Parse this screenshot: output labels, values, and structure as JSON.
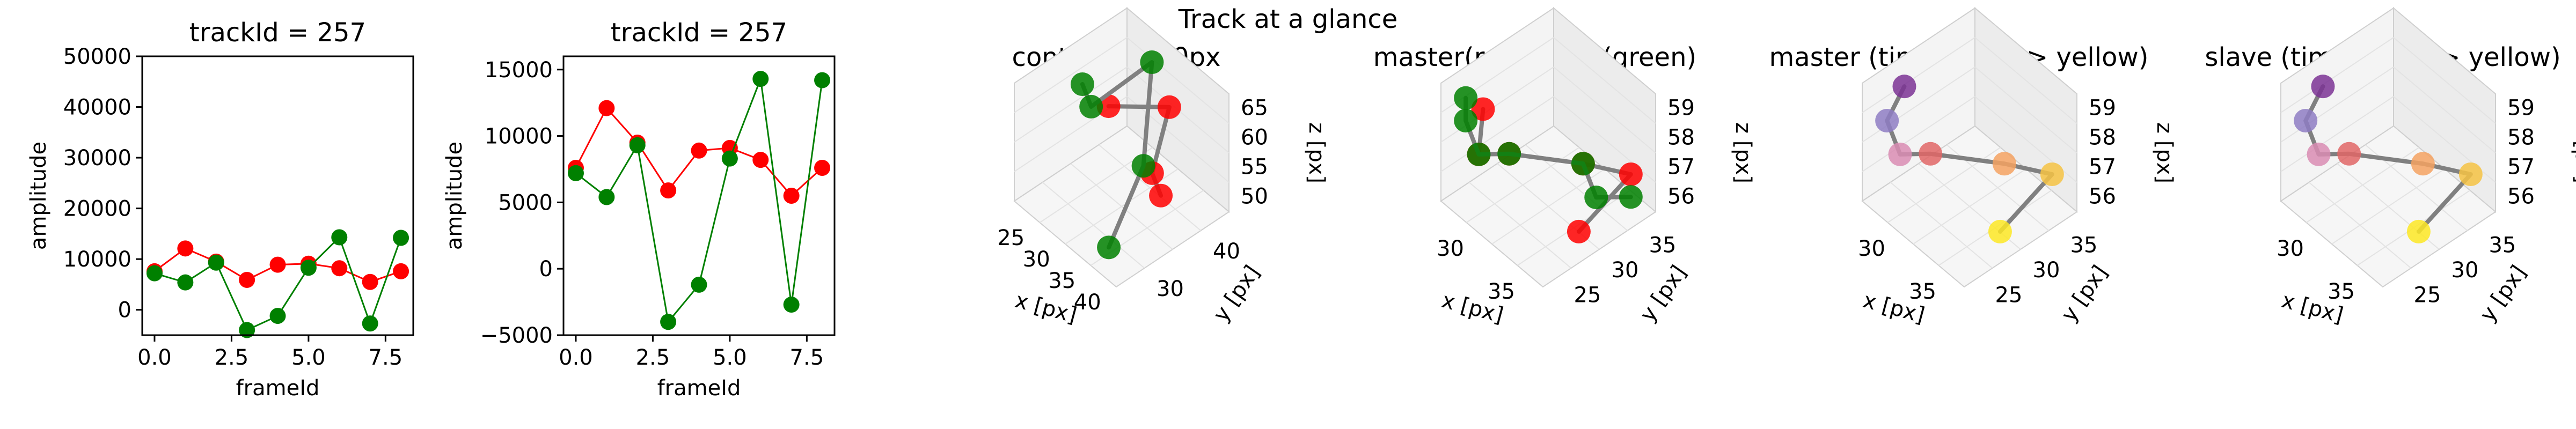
{
  "figure": {
    "suptitle": "Track at a glance"
  },
  "colors": {
    "master": "#ff0000",
    "slave": "#008000",
    "track_line": "#808080",
    "time_start": "#440154",
    "time_end": "#fde725"
  },
  "chart_data": [
    {
      "type": "line",
      "title": "trackId = 257",
      "xlabel": "frameId",
      "ylabel": "amplitude",
      "xlim": [
        -0.4,
        8.4
      ],
      "ylim": [
        -5000,
        50000
      ],
      "xticks": [
        "0.0",
        "2.5",
        "5.0",
        "7.5"
      ],
      "yticks": [
        "0",
        "10000",
        "20000",
        "30000",
        "40000",
        "50000"
      ],
      "x": [
        0,
        1,
        2,
        3,
        4,
        5,
        6,
        7,
        8
      ],
      "series": [
        {
          "color": "#ff0000",
          "values": [
            7600,
            12100,
            9500,
            5900,
            8900,
            9100,
            8200,
            5500,
            7600
          ]
        },
        {
          "color": "#008000",
          "values": [
            7200,
            5400,
            9300,
            -4000,
            -1200,
            8300,
            14300,
            -2700,
            14200
          ]
        }
      ]
    },
    {
      "type": "line",
      "title": "trackId = 257",
      "xlabel": "frameId",
      "ylabel": "amplitude",
      "xlim": [
        -0.4,
        8.4
      ],
      "ylim": [
        -5000,
        16000
      ],
      "xticks": [
        "0.0",
        "2.5",
        "5.0",
        "7.5"
      ],
      "yticks": [
        "−5000",
        "0",
        "5000",
        "10000",
        "15000"
      ],
      "x": [
        0,
        1,
        2,
        3,
        4,
        5,
        6,
        7,
        8
      ],
      "series": [
        {
          "color": "#ff0000",
          "values": [
            7600,
            12100,
            9500,
            5900,
            8900,
            9100,
            8200,
            5500,
            7600
          ]
        },
        {
          "color": "#008000",
          "values": [
            7200,
            5400,
            9300,
            -4000,
            -1200,
            8300,
            14300,
            -2700,
            14200
          ]
        }
      ]
    },
    {
      "type": "scatter",
      "projection": "3d",
      "title": "context +- 10px",
      "xlabel": "x [px]",
      "ylabel": "y [px]",
      "zlabel": "z [px]",
      "xticks": [
        "25",
        "30",
        "35",
        "40"
      ],
      "yticks": [
        "30",
        "40"
      ],
      "zticks": [
        "50",
        "55",
        "60",
        "65"
      ],
      "master_points": [
        [
          33,
          34,
          57
        ],
        [
          35,
          33,
          56
        ],
        [
          38,
          34,
          55
        ],
        [
          39,
          34,
          54
        ]
      ],
      "slave_points": [
        [
          30,
          34,
          57
        ],
        [
          31,
          34,
          56
        ],
        [
          33,
          33,
          58
        ],
        [
          37,
          34,
          55
        ],
        [
          38,
          35,
          52
        ]
      ]
    },
    {
      "type": "scatter",
      "projection": "3d",
      "title": "master(red) slave(green)",
      "xlabel": "x [px]",
      "ylabel": "y [px]",
      "zlabel": "z [px]",
      "xticks": [
        "30",
        "35"
      ],
      "yticks": [
        "25",
        "30",
        "35"
      ],
      "zticks": [
        "56",
        "57",
        "58",
        "59"
      ],
      "master_points": [
        [
          31,
          32,
          58
        ],
        [
          32,
          33,
          57
        ],
        [
          33,
          32,
          57
        ],
        [
          36,
          30,
          57
        ],
        [
          37,
          28,
          56
        ],
        [
          37,
          31,
          55
        ]
      ],
      "slave_points": [
        [
          31,
          33,
          59
        ],
        [
          31,
          33,
          58
        ],
        [
          32,
          33,
          57
        ],
        [
          33,
          32,
          57
        ],
        [
          36,
          30,
          57
        ],
        [
          37,
          30,
          56
        ],
        [
          37,
          28,
          55
        ]
      ]
    },
    {
      "type": "scatter",
      "projection": "3d",
      "title": "master (time: blue -> yellow)",
      "xlabel": "x [px]",
      "ylabel": "y [px]",
      "zlabel": "z [px]",
      "xticks": [
        "30",
        "35"
      ],
      "yticks": [
        "25",
        "30",
        "35"
      ],
      "zticks": [
        "56",
        "57",
        "58",
        "59"
      ],
      "points": [
        [
          31,
          32,
          59
        ],
        [
          31,
          33,
          58
        ],
        [
          32,
          33,
          57
        ],
        [
          33,
          32,
          57
        ],
        [
          36,
          30,
          57
        ],
        [
          37,
          28,
          56
        ],
        [
          37,
          31,
          55
        ]
      ]
    },
    {
      "type": "scatter",
      "projection": "3d",
      "title": "slave (time: blue -> yellow)",
      "xlabel": "x [px]",
      "ylabel": "y [px]",
      "zlabel": "z [px]",
      "xticks": [
        "30",
        "35"
      ],
      "yticks": [
        "25",
        "30",
        "35"
      ],
      "zticks": [
        "56",
        "57",
        "58",
        "59"
      ],
      "points": [
        [
          31,
          32,
          59
        ],
        [
          31,
          33,
          58
        ],
        [
          32,
          33,
          57
        ],
        [
          33,
          32,
          57
        ],
        [
          36,
          30,
          57
        ],
        [
          37,
          28,
          56
        ],
        [
          37,
          31,
          55
        ]
      ]
    }
  ]
}
